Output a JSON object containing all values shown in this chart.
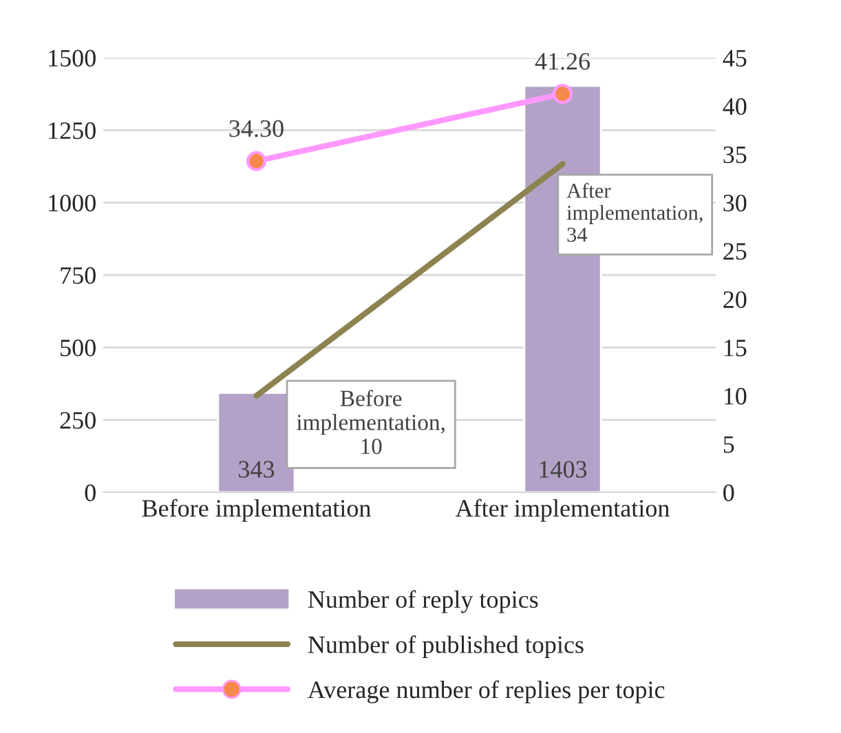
{
  "chart_data": {
    "type": "bar",
    "categories": [
      "Before implementation",
      "After implementation"
    ],
    "series": [
      {
        "name": "Number of reply topics",
        "type": "bar",
        "color": "#b3a2c7",
        "values": [
          343,
          1403
        ],
        "value_labels": [
          "343",
          "1403"
        ]
      },
      {
        "name": "Number of published topics",
        "type": "line",
        "axis": "y2",
        "color": "#8c8351",
        "values": [
          10,
          34
        ],
        "value_labels": [
          "Before implementation, 10",
          "After implementation, 34"
        ]
      },
      {
        "name": "Average number of replies per topic",
        "type": "line",
        "axis": "y2",
        "color": "#ff99ff",
        "marker": "circle",
        "values": [
          34.3,
          41.26
        ],
        "value_labels": [
          "34.30",
          "41.26"
        ]
      }
    ],
    "ylim": [
      0,
      1500
    ],
    "yticks": [
      0,
      250,
      500,
      750,
      1000,
      1250,
      1500
    ],
    "y2lim": [
      0,
      45
    ],
    "y2ticks": [
      0,
      5,
      10,
      15,
      20,
      25,
      30,
      35,
      40,
      45
    ],
    "grid": "y",
    "legend": "bottom"
  }
}
